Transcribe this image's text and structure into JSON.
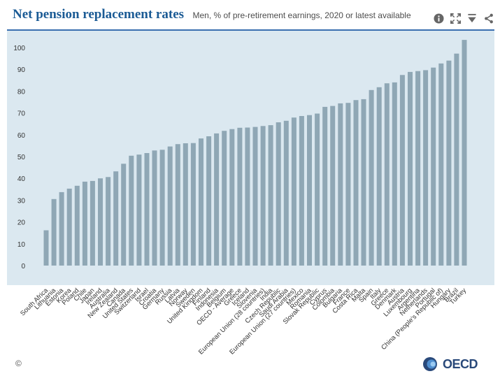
{
  "header": {
    "title": "Net pension replacement rates",
    "subtitle": "Men, % of pre-retirement earnings, 2020 or latest available"
  },
  "icons": {
    "info": "info-icon",
    "expand": "expand-icon",
    "download": "download-icon",
    "share": "share-icon"
  },
  "footer": {
    "copyright": "©",
    "logo_text": "OECD"
  },
  "colors": {
    "bar": "#8fa7b5",
    "plot_bg": "#dbe8f0",
    "title": "#1b5b95",
    "rule": "#3a6fb0"
  },
  "chart_data": {
    "type": "bar",
    "title": "Net pension replacement rates",
    "subtitle": "Men, % of pre-retirement earnings, 2020 or latest available",
    "xlabel": "",
    "ylabel": "",
    "ylim": [
      0,
      105
    ],
    "yticks": [
      0,
      10,
      20,
      30,
      40,
      50,
      60,
      70,
      80,
      90,
      100
    ],
    "grid": false,
    "categories": [
      "South Africa",
      "Lithuania",
      "Estonia",
      "Korea",
      "Poland",
      "Chile",
      "Japan",
      "Ireland",
      "Australia",
      "New Zealand",
      "Canada",
      "United States",
      "Switzerland",
      "Israel",
      "Croatia",
      "Germany",
      "Russia",
      "Latvia",
      "Norway",
      "Sweden",
      "United Kingdom",
      "Finland",
      "Indonesia",
      "Belgium",
      "OECD - Average",
      "Greece",
      "Iceland",
      "Slovenia",
      "European Union (28 countries)",
      "India",
      "Czech Republic",
      "Saudi Arabia",
      "European Union (27 countries)",
      "Mexico",
      "Romania",
      "Slovak Republic",
      "Cyprus",
      "Colombia",
      "Bulgaria",
      "France",
      "Costa Rica",
      "Malta",
      "Spain",
      "Italy",
      "Greece",
      "Denmark",
      "Austria",
      "Luxembourg",
      "Argentina",
      "Netherlands",
      "Portugal",
      "China (People's Republic of)",
      "Hungary",
      "Brazil",
      "Turkey"
    ],
    "values": [
      16.2,
      30.5,
      33.7,
      35.3,
      36.6,
      38.5,
      38.8,
      40.0,
      40.6,
      43.2,
      46.7,
      50.4,
      50.9,
      51.6,
      52.8,
      53.1,
      54.6,
      55.7,
      56.1,
      56.2,
      58.3,
      59.3,
      60.6,
      61.8,
      62.6,
      63.2,
      63.3,
      63.6,
      64.0,
      64.4,
      65.7,
      66.4,
      67.9,
      68.6,
      69.0,
      69.7,
      72.8,
      73.2,
      74.4,
      74.6,
      75.9,
      76.3,
      80.5,
      81.8,
      83.6,
      84.0,
      87.4,
      88.8,
      89.2,
      89.6,
      90.8,
      92.7,
      94.0,
      97.2,
      103.5
    ]
  }
}
